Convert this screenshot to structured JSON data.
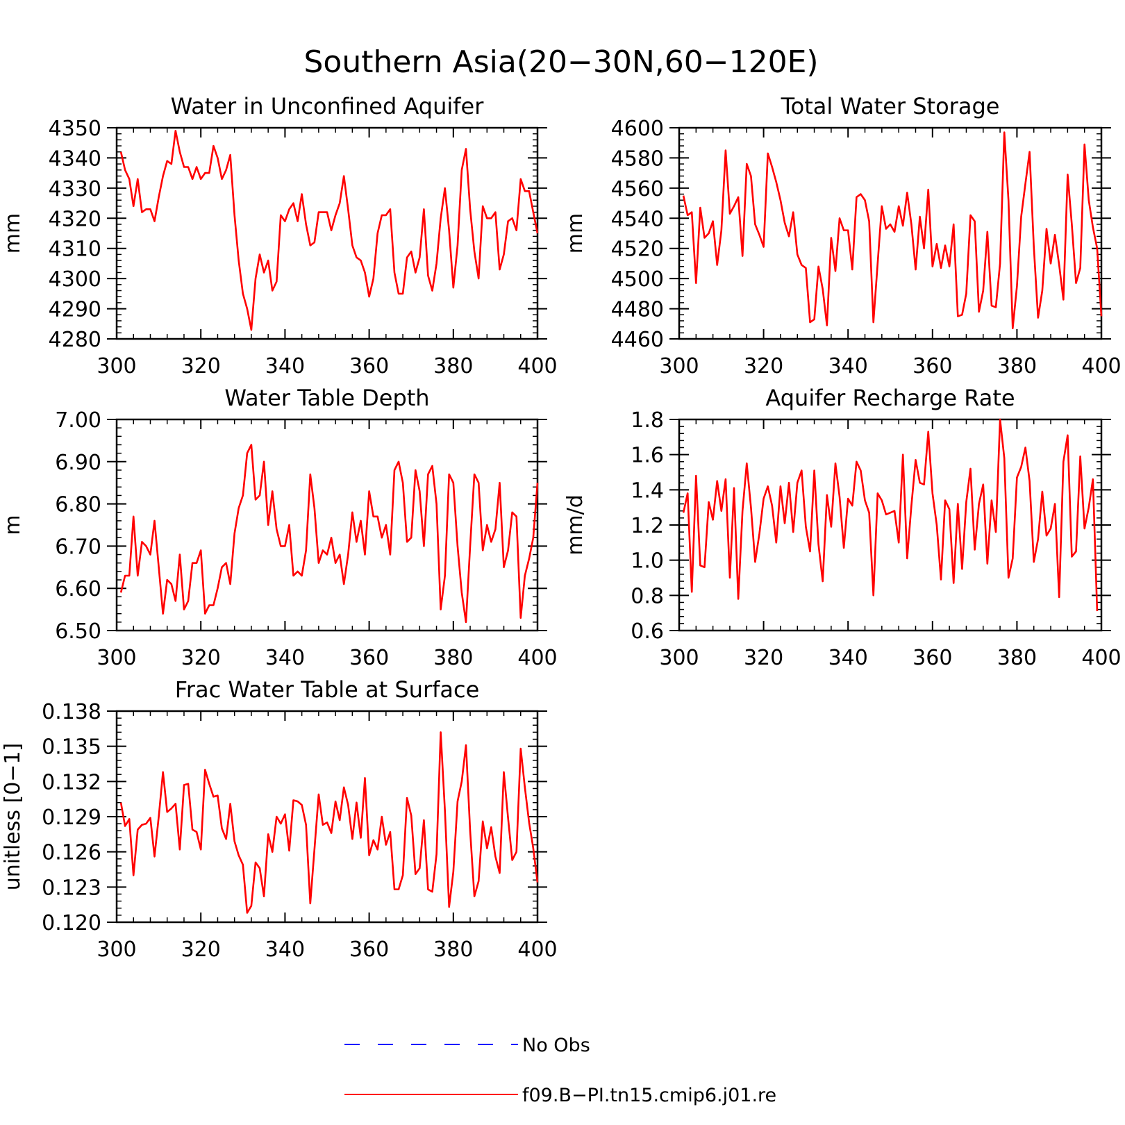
{
  "figure": {
    "title": "Southern Asia(20−30N,60−120E)",
    "legend": [
      {
        "label": "No Obs",
        "color": "#0000ff",
        "style": "dashed"
      },
      {
        "label": "f09.B−PI.tn15.cmip6.j01.re",
        "color": "#ff0000",
        "style": "solid"
      }
    ]
  },
  "chart_data": [
    {
      "type": "line",
      "title": "Water in Unconfined Aquifer",
      "ylabel": "mm",
      "xlim": [
        300,
        400
      ],
      "ylim": [
        4280,
        4350
      ],
      "xticks": [
        300,
        320,
        340,
        360,
        380,
        400
      ],
      "yticks": [
        "4280",
        "4290",
        "4300",
        "4310",
        "4320",
        "4330",
        "4340",
        "4350"
      ],
      "series": [
        {
          "name": "f09.B−PI.tn15.cmip6.j01.re",
          "color": "#ff0000",
          "x0": 301,
          "values": [
            4342,
            4336,
            4333,
            4324,
            4333,
            4322,
            4323,
            4323,
            4319,
            4327,
            4334,
            4339,
            4338,
            4349,
            4342,
            4337,
            4337,
            4333,
            4337,
            4333,
            4335,
            4335,
            4344,
            4340,
            4333,
            4336,
            4341,
            4321,
            4306,
            4295,
            4290,
            4283,
            4300,
            4308,
            4302,
            4306,
            4296,
            4299,
            4321,
            4319,
            4323,
            4325,
            4319,
            4328,
            4318,
            4311,
            4312,
            4322,
            4322,
            4322,
            4316,
            4321,
            4325,
            4334,
            4323,
            4311,
            4307,
            4306,
            4302,
            4294,
            4300,
            4315,
            4321,
            4321,
            4323,
            4302,
            4295,
            4295,
            4307,
            4309,
            4302,
            4307,
            4323,
            4301,
            4296,
            4305,
            4320,
            4330,
            4316,
            4297,
            4311,
            4336,
            4343,
            4323,
            4309,
            4300,
            4324,
            4320,
            4320,
            4322,
            4303,
            4308,
            4319,
            4320,
            4316,
            4333,
            4329,
            4329,
            4322,
            4315
          ]
        }
      ]
    },
    {
      "type": "line",
      "title": "Total Water Storage",
      "ylabel": "mm",
      "xlim": [
        300,
        400
      ],
      "ylim": [
        4460,
        4600
      ],
      "xticks": [
        300,
        320,
        340,
        360,
        380,
        400
      ],
      "yticks": [
        "4460",
        "4480",
        "4500",
        "4520",
        "4540",
        "4560",
        "4580",
        "4600"
      ],
      "series": [
        {
          "name": "f09.B−PI.tn15.cmip6.j01.re",
          "color": "#ff0000",
          "x0": 301,
          "values": [
            4555,
            4542,
            4544,
            4497,
            4547,
            4527,
            4530,
            4538,
            4509,
            4532,
            4585,
            4543,
            4548,
            4554,
            4515,
            4576,
            4568,
            4536,
            4529,
            4521,
            4583,
            4574,
            4564,
            4552,
            4537,
            4528,
            4544,
            4516,
            4509,
            4507,
            4471,
            4473,
            4508,
            4493,
            4469,
            4527,
            4505,
            4540,
            4532,
            4532,
            4506,
            4554,
            4556,
            4552,
            4538,
            4471,
            4510,
            4548,
            4533,
            4536,
            4531,
            4548,
            4535,
            4557,
            4536,
            4506,
            4541,
            4520,
            4559,
            4508,
            4523,
            4507,
            4522,
            4508,
            4536,
            4475,
            4476,
            4490,
            4542,
            4538,
            4478,
            4492,
            4531,
            4482,
            4481,
            4510,
            4597,
            4552,
            4467,
            4495,
            4541,
            4563,
            4584,
            4521,
            4474,
            4492,
            4533,
            4510,
            4529,
            4509,
            4486,
            4569,
            4536,
            4497,
            4507,
            4589,
            4552,
            4534,
            4520,
            4475
          ]
        }
      ]
    },
    {
      "type": "line",
      "title": "Water Table Depth",
      "ylabel": "m",
      "xlim": [
        300,
        400
      ],
      "ylim": [
        6.5,
        7.0
      ],
      "xticks": [
        300,
        320,
        340,
        360,
        380,
        400
      ],
      "yticks": [
        "6.50",
        "6.60",
        "6.70",
        "6.80",
        "6.90",
        "7.00"
      ],
      "series": [
        {
          "name": "f09.B−PI.tn15.cmip6.j01.re",
          "color": "#ff0000",
          "x0": 301,
          "values": [
            6.59,
            6.63,
            6.63,
            6.77,
            6.63,
            6.71,
            6.7,
            6.68,
            6.76,
            6.65,
            6.54,
            6.62,
            6.61,
            6.57,
            6.68,
            6.55,
            6.57,
            6.66,
            6.66,
            6.69,
            6.54,
            6.56,
            6.56,
            6.6,
            6.65,
            6.66,
            6.61,
            6.73,
            6.79,
            6.82,
            6.92,
            6.94,
            6.81,
            6.82,
            6.9,
            6.75,
            6.83,
            6.74,
            6.7,
            6.7,
            6.75,
            6.63,
            6.64,
            6.63,
            6.69,
            6.87,
            6.79,
            6.66,
            6.69,
            6.68,
            6.72,
            6.66,
            6.68,
            6.61,
            6.68,
            6.78,
            6.71,
            6.76,
            6.68,
            6.83,
            6.77,
            6.77,
            6.72,
            6.75,
            6.68,
            6.88,
            6.9,
            6.85,
            6.71,
            6.72,
            6.88,
            6.83,
            6.7,
            6.87,
            6.89,
            6.8,
            6.55,
            6.63,
            6.87,
            6.85,
            6.7,
            6.59,
            6.52,
            6.7,
            6.87,
            6.85,
            6.69,
            6.75,
            6.71,
            6.74,
            6.85,
            6.65,
            6.69,
            6.78,
            6.77,
            6.53,
            6.63,
            6.67,
            6.72,
            6.85
          ]
        }
      ]
    },
    {
      "type": "line",
      "title": "Aquifer Recharge Rate",
      "ylabel": "mm/d",
      "xlim": [
        300,
        400
      ],
      "ylim": [
        0.6,
        1.8
      ],
      "xticks": [
        300,
        320,
        340,
        360,
        380,
        400
      ],
      "yticks": [
        "0.6",
        "0.8",
        "1.0",
        "1.2",
        "1.4",
        "1.6",
        "1.8"
      ],
      "series": [
        {
          "name": "f09.B−PI.tn15.cmip6.j01.re",
          "color": "#ff0000",
          "x0": 301,
          "values": [
            1.27,
            1.38,
            0.82,
            1.48,
            0.97,
            0.96,
            1.33,
            1.23,
            1.45,
            1.28,
            1.46,
            0.9,
            1.41,
            0.78,
            1.28,
            1.55,
            1.3,
            0.99,
            1.15,
            1.35,
            1.42,
            1.31,
            1.1,
            1.42,
            1.21,
            1.44,
            1.16,
            1.44,
            1.51,
            1.19,
            1.05,
            1.51,
            1.09,
            0.88,
            1.37,
            1.19,
            1.55,
            1.36,
            1.07,
            1.35,
            1.31,
            1.56,
            1.51,
            1.34,
            1.27,
            0.8,
            1.38,
            1.34,
            1.26,
            1.27,
            1.28,
            1.1,
            1.6,
            1.01,
            1.31,
            1.57,
            1.44,
            1.43,
            1.73,
            1.38,
            1.2,
            0.89,
            1.34,
            1.29,
            0.87,
            1.32,
            0.95,
            1.33,
            1.52,
            1.06,
            1.32,
            1.43,
            0.98,
            1.34,
            1.16,
            1.8,
            1.58,
            0.9,
            1.01,
            1.47,
            1.53,
            1.64,
            1.45,
            0.99,
            1.12,
            1.39,
            1.14,
            1.18,
            1.32,
            0.79,
            1.56,
            1.71,
            1.02,
            1.05,
            1.59,
            1.18,
            1.3,
            1.46,
            0.71
          ]
        }
      ]
    },
    {
      "type": "line",
      "title": "Frac Water Table at Surface",
      "ylabel": "unitless [0−1]",
      "xlim": [
        300,
        400
      ],
      "ylim": [
        0.12,
        0.138
      ],
      "xticks": [
        300,
        320,
        340,
        360,
        380,
        400
      ],
      "yticks": [
        "0.120",
        "0.123",
        "0.126",
        "0.129",
        "0.132",
        "0.135",
        "0.138"
      ],
      "series": [
        {
          "name": "f09.B−PI.tn15.cmip6.j01.re",
          "color": "#ff0000",
          "x0": 301,
          "values": [
            0.1302,
            0.1282,
            0.1288,
            0.124,
            0.1279,
            0.1283,
            0.1284,
            0.1289,
            0.1256,
            0.129,
            0.1328,
            0.1294,
            0.1297,
            0.1301,
            0.1262,
            0.1317,
            0.1318,
            0.1279,
            0.1277,
            0.1262,
            0.133,
            0.1318,
            0.1307,
            0.1308,
            0.128,
            0.1271,
            0.1301,
            0.1269,
            0.1257,
            0.1249,
            0.1208,
            0.1214,
            0.1251,
            0.1246,
            0.1222,
            0.1275,
            0.126,
            0.129,
            0.1284,
            0.1292,
            0.1261,
            0.1304,
            0.1303,
            0.13,
            0.1283,
            0.1216,
            0.1262,
            0.1309,
            0.1283,
            0.1285,
            0.1276,
            0.1303,
            0.1287,
            0.1315,
            0.13,
            0.1271,
            0.1302,
            0.1272,
            0.1323,
            0.1257,
            0.127,
            0.1262,
            0.129,
            0.1266,
            0.1277,
            0.1228,
            0.1228,
            0.124,
            0.1306,
            0.1291,
            0.1241,
            0.1246,
            0.1287,
            0.1228,
            0.1226,
            0.1258,
            0.1362,
            0.1295,
            0.1213,
            0.1243,
            0.1303,
            0.132,
            0.1351,
            0.1278,
            0.1222,
            0.1235,
            0.1286,
            0.1263,
            0.1281,
            0.1256,
            0.1242,
            0.1328,
            0.1289,
            0.1253,
            0.126,
            0.1348,
            0.1315,
            0.1285,
            0.1263,
            0.1234
          ]
        }
      ]
    }
  ]
}
